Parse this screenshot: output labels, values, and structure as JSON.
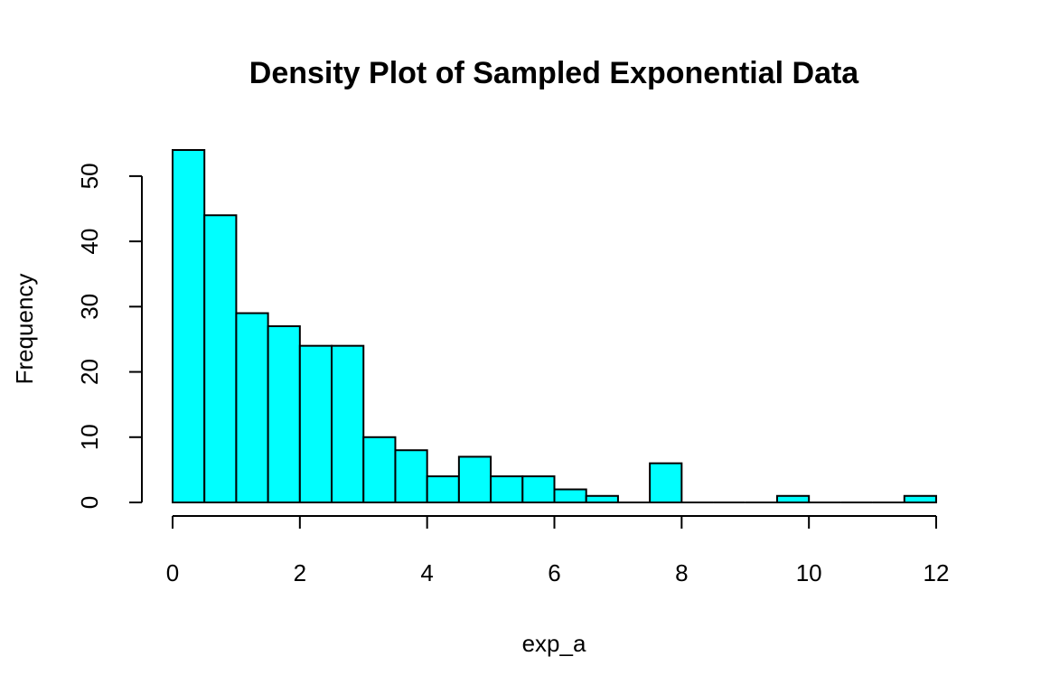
{
  "chart_data": {
    "type": "bar",
    "subtype": "histogram",
    "title": "Density Plot of Sampled Exponential Data",
    "xlabel": "exp_a",
    "ylabel": "Frequency",
    "bins": [
      {
        "start": 0.0,
        "end": 0.5,
        "count": 54
      },
      {
        "start": 0.5,
        "end": 1.0,
        "count": 44
      },
      {
        "start": 1.0,
        "end": 1.5,
        "count": 29
      },
      {
        "start": 1.5,
        "end": 2.0,
        "count": 27
      },
      {
        "start": 2.0,
        "end": 2.5,
        "count": 24
      },
      {
        "start": 2.5,
        "end": 3.0,
        "count": 24
      },
      {
        "start": 3.0,
        "end": 3.5,
        "count": 10
      },
      {
        "start": 3.5,
        "end": 4.0,
        "count": 8
      },
      {
        "start": 4.0,
        "end": 4.5,
        "count": 4
      },
      {
        "start": 4.5,
        "end": 5.0,
        "count": 7
      },
      {
        "start": 5.0,
        "end": 5.5,
        "count": 4
      },
      {
        "start": 5.5,
        "end": 6.0,
        "count": 4
      },
      {
        "start": 6.0,
        "end": 6.5,
        "count": 2
      },
      {
        "start": 6.5,
        "end": 7.0,
        "count": 1
      },
      {
        "start": 7.0,
        "end": 7.5,
        "count": 0
      },
      {
        "start": 7.5,
        "end": 8.0,
        "count": 6
      },
      {
        "start": 8.0,
        "end": 8.5,
        "count": 0
      },
      {
        "start": 8.5,
        "end": 9.0,
        "count": 0
      },
      {
        "start": 9.0,
        "end": 9.5,
        "count": 0
      },
      {
        "start": 9.5,
        "end": 10.0,
        "count": 1
      },
      {
        "start": 10.0,
        "end": 10.5,
        "count": 0
      },
      {
        "start": 10.5,
        "end": 11.0,
        "count": 0
      },
      {
        "start": 11.0,
        "end": 11.5,
        "count": 0
      },
      {
        "start": 11.5,
        "end": 12.0,
        "count": 1
      }
    ],
    "xticks": [
      "0",
      "2",
      "4",
      "6",
      "8",
      "10",
      "12"
    ],
    "yticks": [
      "0",
      "10",
      "20",
      "30",
      "40",
      "50"
    ],
    "xlim": [
      0,
      12
    ],
    "ylim": [
      0,
      54
    ],
    "grid": false,
    "bar_color": "#00FFFF",
    "edge_color": "#000000"
  }
}
